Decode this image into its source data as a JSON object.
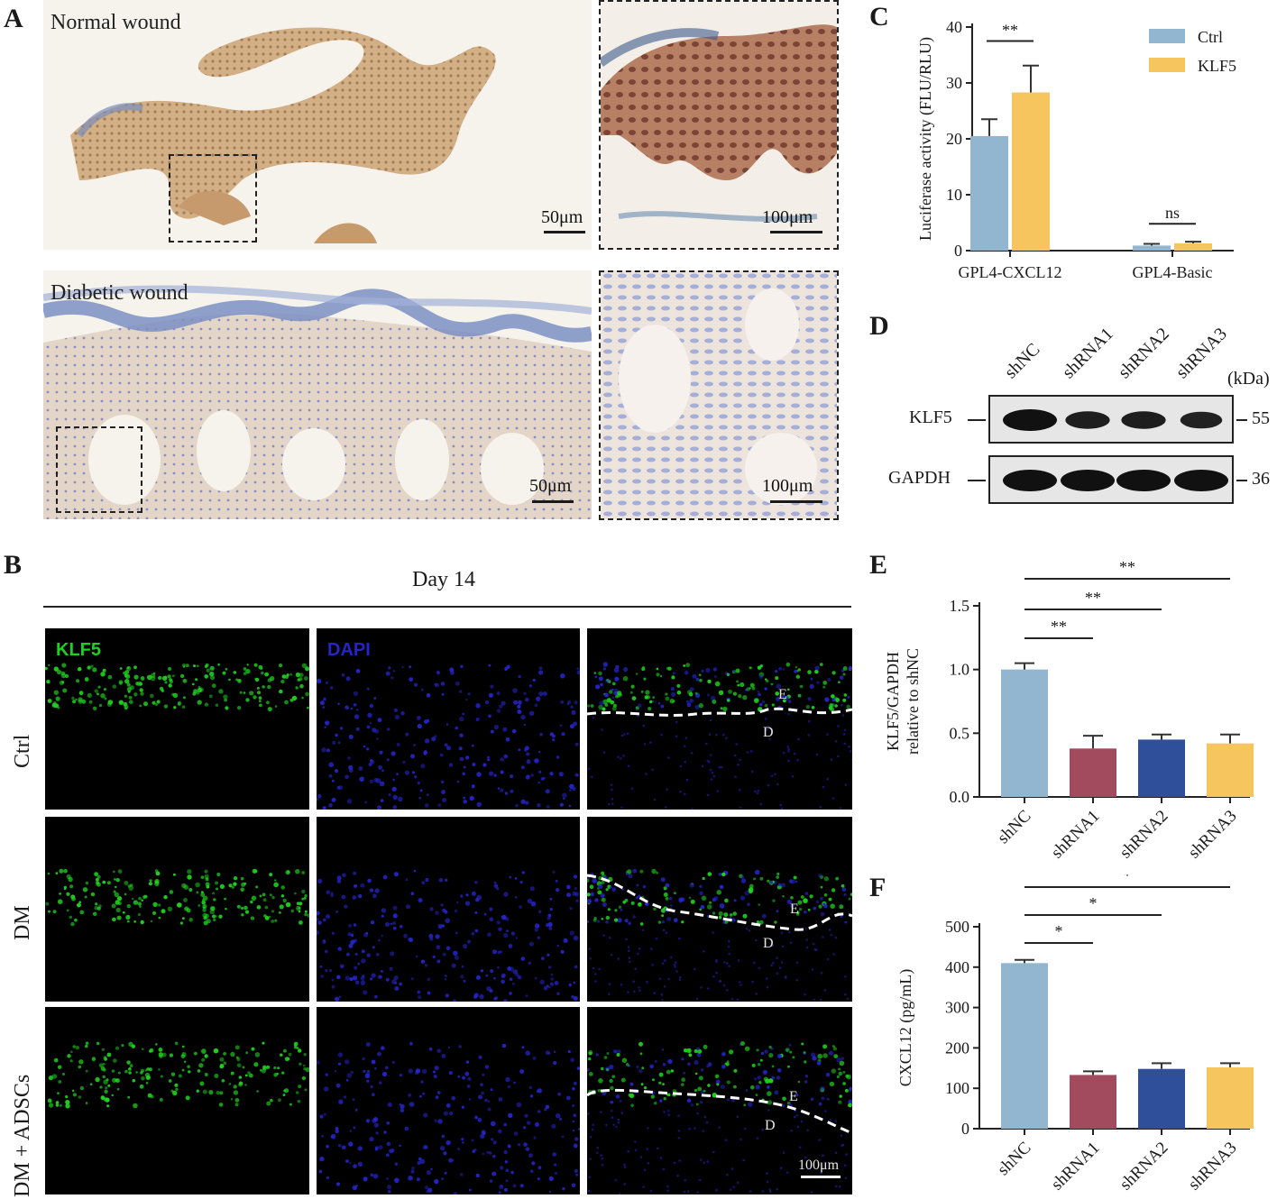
{
  "panels": {
    "A": "A",
    "B": "B",
    "C": "C",
    "D": "D",
    "E": "E",
    "F": "F"
  },
  "panelA": {
    "normal_title": "Normal wound",
    "diabetic_title": "Diabetic wound",
    "scale_main": "50μm",
    "scale_inset": "100μm"
  },
  "panelB": {
    "day_title": "Day 14",
    "channel_klf5": "KLF5",
    "channel_dapi": "DAPI",
    "rows": [
      "Ctrl",
      "DM",
      "DM + ADSCs"
    ],
    "epidermis_mark": "E",
    "dermis_mark": "D",
    "scale": "100μm",
    "colors": {
      "klf5": "#1fd11f",
      "dapi": "#2424c8"
    }
  },
  "panelD": {
    "lanes": [
      "shNC",
      "shRNA1",
      "shRNA2",
      "shRNA3"
    ],
    "unit": "(kDa)",
    "bands": [
      {
        "name": "KLF5",
        "kda": "55",
        "intensity": [
          1.0,
          0.8,
          0.8,
          0.75
        ]
      },
      {
        "name": "GAPDH",
        "kda": "36",
        "intensity": [
          1.0,
          1.0,
          1.0,
          1.0
        ]
      }
    ]
  },
  "chart_data": [
    {
      "id": "C",
      "type": "bar",
      "categories": [
        "GPL4-CXCL12",
        "GPL4-Basic"
      ],
      "series": [
        {
          "name": "Ctrl",
          "values": [
            20.5,
            0.9
          ],
          "errors": [
            3.0,
            0.3
          ],
          "color": "#92b6d0"
        },
        {
          "name": "KLF5",
          "values": [
            28.3,
            1.3
          ],
          "errors": [
            4.8,
            0.3
          ],
          "color": "#f6c55e"
        }
      ],
      "ylabel": "Luciferase activity (FLU/RLU)",
      "ylim": [
        0,
        40
      ],
      "yticks": [
        0,
        10,
        20,
        30,
        40
      ],
      "significance": [
        {
          "category": "GPL4-CXCL12",
          "label": "**"
        },
        {
          "category": "GPL4-Basic",
          "label": "ns"
        }
      ],
      "legend": "top-right"
    },
    {
      "id": "E",
      "type": "bar",
      "categories": [
        "shNC",
        "shRNA1",
        "shRNA2",
        "shRNA3"
      ],
      "values": [
        1.0,
        0.38,
        0.45,
        0.42
      ],
      "errors": [
        0.05,
        0.1,
        0.04,
        0.07
      ],
      "colors": [
        "#92b6d0",
        "#a34b5e",
        "#2f4f9a",
        "#f6c55e"
      ],
      "ylabel": [
        "KLF5/GAPDH",
        "relative to shNC"
      ],
      "ylim": [
        0,
        1.5
      ],
      "yticks": [
        "0.0",
        "0.5",
        "1.0",
        "1.5"
      ],
      "significance": [
        {
          "from": "shNC",
          "to": "shRNA1",
          "label": "**"
        },
        {
          "from": "shNC",
          "to": "shRNA2",
          "label": "**"
        },
        {
          "from": "shNC",
          "to": "shRNA3",
          "label": "**"
        }
      ]
    },
    {
      "id": "F",
      "type": "bar",
      "categories": [
        "shNC",
        "shRNA1",
        "shRNA2",
        "shRNA3"
      ],
      "values": [
        410,
        133,
        148,
        152
      ],
      "errors": [
        8,
        9,
        14,
        10
      ],
      "colors": [
        "#92b6d0",
        "#a34b5e",
        "#2f4f9a",
        "#f6c55e"
      ],
      "ylabel": "CXCL12 (pg/mL)",
      "ylim": [
        0,
        500
      ],
      "yticks": [
        0,
        100,
        200,
        300,
        400,
        500
      ],
      "significance": [
        {
          "from": "shNC",
          "to": "shRNA1",
          "label": "*"
        },
        {
          "from": "shNC",
          "to": "shRNA2",
          "label": "*"
        },
        {
          "from": "shNC",
          "to": "shRNA3",
          "label": "*"
        }
      ]
    }
  ]
}
